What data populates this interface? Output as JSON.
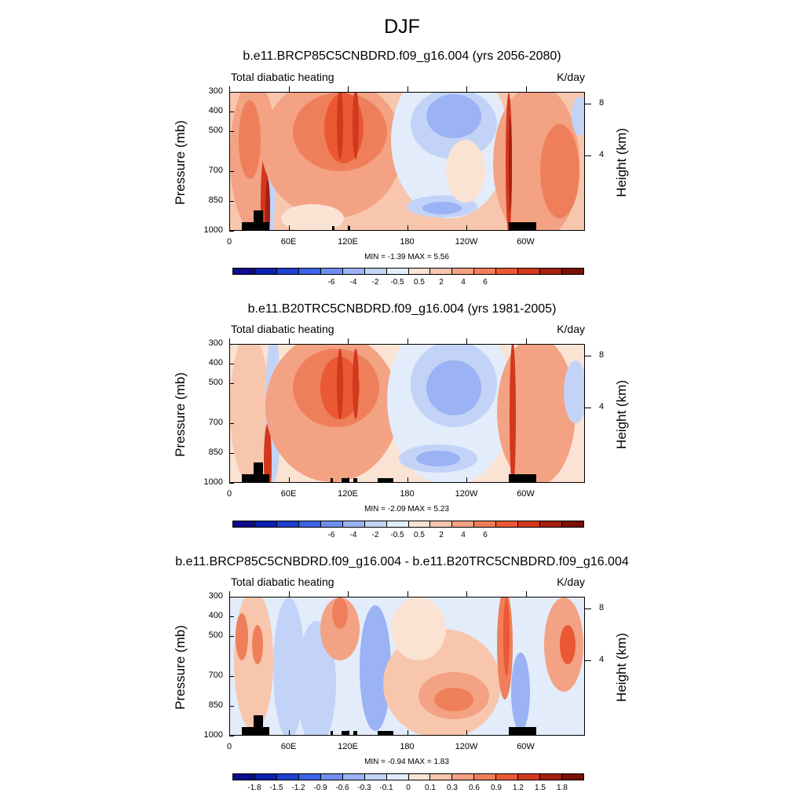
{
  "page_title": "DJF",
  "colors": {
    "scale": [
      "#0c0c8c",
      "#0a1fb0",
      "#1e40d0",
      "#3c62e6",
      "#6e8ff0",
      "#9bb2f4",
      "#c2d3f7",
      "#e3ecfa",
      "#fbe3d4",
      "#f7c6ad",
      "#f3a283",
      "#ef7f5b",
      "#ea5834",
      "#d2381d",
      "#a51f10",
      "#781005"
    ]
  },
  "chart_data": [
    {
      "type": "heatmap",
      "title": "b.e11.BRCP85C5CNBDRD.f09_g16.004 (yrs 2056-2080)",
      "field_label": "Total diabatic heating",
      "units": "K/day",
      "ylabel": "Pressure (mb)",
      "ylabel_right": "Height (km)",
      "y_ticks": [
        "300",
        "400",
        "500",
        "700",
        "850",
        "1000"
      ],
      "y_ticks_right": [
        "8",
        "4"
      ],
      "x_ticks": [
        "0",
        "60E",
        "120E",
        "180",
        "120W",
        "60W"
      ],
      "ylim": [
        1000,
        300
      ],
      "xlim": [
        0,
        360
      ],
      "stats": "MIN =  -1.39  MAX =   5.56",
      "colorbar_labels": [
        "-6",
        "-4",
        "-2",
        "-0.5",
        "0.5",
        "2",
        "4",
        "6"
      ]
    },
    {
      "type": "heatmap",
      "title": "b.e11.B20TRC5CNBDRD.f09_g16.004 (yrs 1981-2005)",
      "field_label": "Total diabatic heating",
      "units": "K/day",
      "ylabel": "Pressure (mb)",
      "ylabel_right": "Height (km)",
      "y_ticks": [
        "300",
        "400",
        "500",
        "700",
        "850",
        "1000"
      ],
      "y_ticks_right": [
        "8",
        "4"
      ],
      "x_ticks": [
        "0",
        "60E",
        "120E",
        "180",
        "120W",
        "60W"
      ],
      "ylim": [
        1000,
        300
      ],
      "xlim": [
        0,
        360
      ],
      "stats": "MIN =  -2.09  MAX =   5.23",
      "colorbar_labels": [
        "-6",
        "-4",
        "-2",
        "-0.5",
        "0.5",
        "2",
        "4",
        "6"
      ]
    },
    {
      "type": "heatmap",
      "title": "b.e11.BRCP85C5CNBDRD.f09_g16.004 - b.e11.B20TRC5CNBDRD.f09_g16.004",
      "field_label": "Total diabatic heating",
      "units": "K/day",
      "ylabel": "Pressure (mb)",
      "ylabel_right": "Height (km)",
      "y_ticks": [
        "300",
        "400",
        "500",
        "700",
        "850",
        "1000"
      ],
      "y_ticks_right": [
        "8",
        "4"
      ],
      "x_ticks": [
        "0",
        "60E",
        "120E",
        "180",
        "120W",
        "60W"
      ],
      "ylim": [
        1000,
        300
      ],
      "xlim": [
        0,
        360
      ],
      "stats": "MIN =  -0.94  MAX =   1.83",
      "colorbar_labels": [
        "-1.8",
        "-1.5",
        "-1.2",
        "-0.9",
        "-0.6",
        "-0.3",
        "-0.1",
        "0",
        "0.1",
        "0.3",
        "0.6",
        "0.9",
        "1.2",
        "1.5",
        "1.8"
      ]
    }
  ]
}
